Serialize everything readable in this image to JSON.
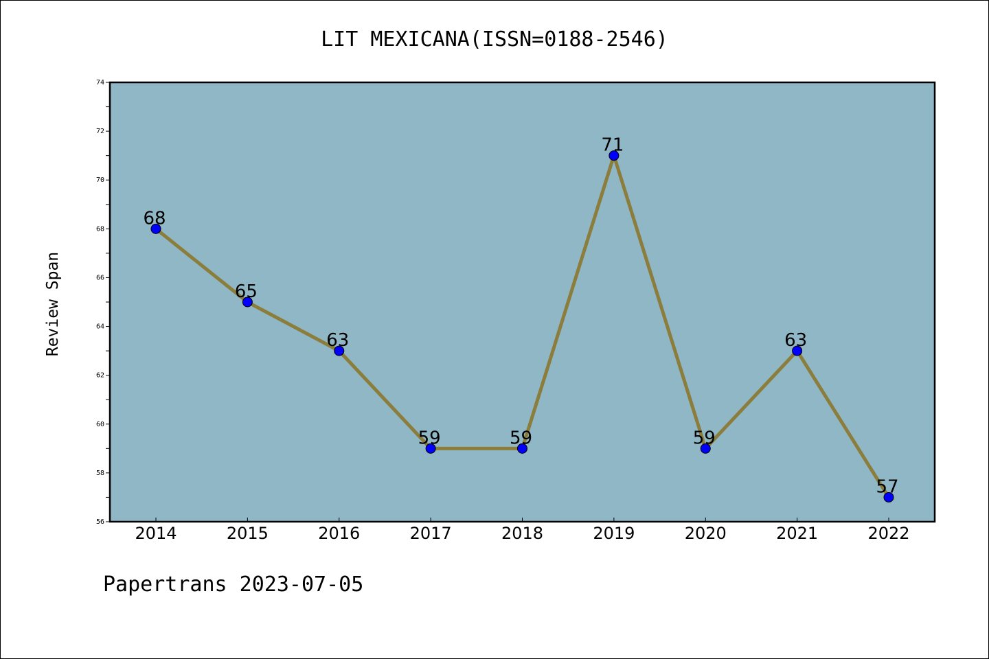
{
  "chart_data": {
    "type": "line",
    "title": "LIT MEXICANA(ISSN=0188-2546)",
    "xlabel": "",
    "ylabel": "Review Span",
    "categories": [
      "2014",
      "2015",
      "2016",
      "2017",
      "2018",
      "2019",
      "2020",
      "2021",
      "2022"
    ],
    "values": [
      68,
      65,
      63,
      59,
      59,
      71,
      59,
      63,
      57
    ],
    "ylim": [
      56,
      74
    ],
    "yticks": [
      56,
      58,
      60,
      62,
      64,
      66,
      68,
      70,
      72,
      74
    ],
    "grid": false,
    "legend": "none",
    "colors": {
      "plot_background": "#8fb7c5",
      "line": "#8b7d3c",
      "marker": "#0000ff"
    }
  },
  "footer": {
    "text": "Papertrans 2023-07-05"
  }
}
